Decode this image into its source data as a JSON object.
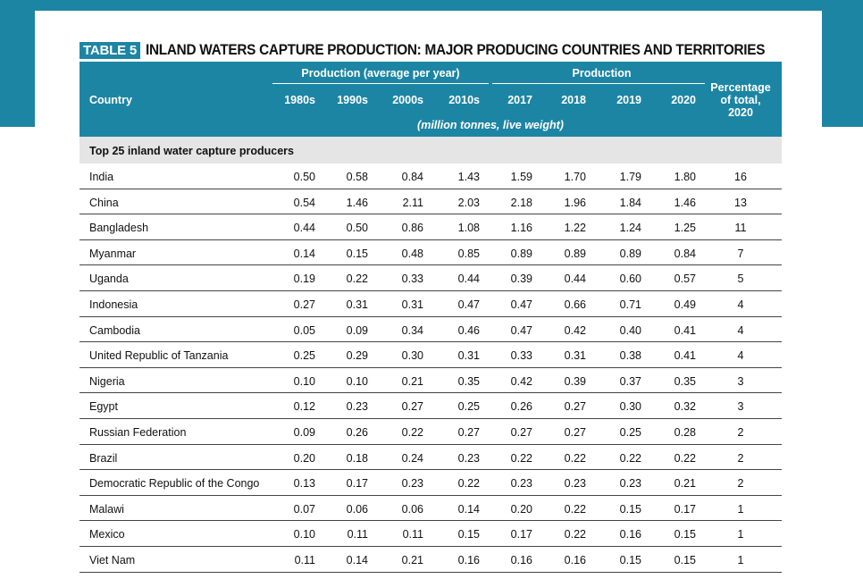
{
  "table": {
    "tag": "TABLE 5",
    "title": "INLAND WATERS CAPTURE PRODUCTION: MAJOR PRODUCING COUNTRIES AND TERRITORIES",
    "header": {
      "country": "Country",
      "group_average": "Production (average per year)",
      "group_production": "Production",
      "years": [
        "1980s",
        "1990s",
        "2000s",
        "2010s",
        "2017",
        "2018",
        "2019",
        "2020"
      ],
      "percentage": [
        "Percentage",
        "of total,",
        "2020"
      ],
      "units": "(million tonnes, live weight)"
    },
    "section": "Top 25 inland water capture producers",
    "rows": [
      {
        "country": "India",
        "values": [
          "0.50",
          "0.58",
          "0.84",
          "1.43",
          "1.59",
          "1.70",
          "1.79",
          "1.80"
        ],
        "pct": "16"
      },
      {
        "country": "China",
        "values": [
          "0.54",
          "1.46",
          "2.11",
          "2.03",
          "2.18",
          "1.96",
          "1.84",
          "1.46"
        ],
        "pct": "13"
      },
      {
        "country": "Bangladesh",
        "values": [
          "0.44",
          "0.50",
          "0.86",
          "1.08",
          "1.16",
          "1.22",
          "1.24",
          "1.25"
        ],
        "pct": "11"
      },
      {
        "country": "Myanmar",
        "values": [
          "0.14",
          "0.15",
          "0.48",
          "0.85",
          "0.89",
          "0.89",
          "0.89",
          "0.84"
        ],
        "pct": "7"
      },
      {
        "country": "Uganda",
        "values": [
          "0.19",
          "0.22",
          "0.33",
          "0.44",
          "0.39",
          "0.44",
          "0.60",
          "0.57"
        ],
        "pct": "5"
      },
      {
        "country": "Indonesia",
        "values": [
          "0.27",
          "0.31",
          "0.31",
          "0.47",
          "0.47",
          "0.66",
          "0.71",
          "0.49"
        ],
        "pct": "4"
      },
      {
        "country": "Cambodia",
        "values": [
          "0.05",
          "0.09",
          "0.34",
          "0.46",
          "0.47",
          "0.42",
          "0.40",
          "0.41"
        ],
        "pct": "4"
      },
      {
        "country": "United Republic of Tanzania",
        "values": [
          "0.25",
          "0.29",
          "0.30",
          "0.31",
          "0.33",
          "0.31",
          "0.38",
          "0.41"
        ],
        "pct": "4"
      },
      {
        "country": "Nigeria",
        "values": [
          "0.10",
          "0.10",
          "0.21",
          "0.35",
          "0.42",
          "0.39",
          "0.37",
          "0.35"
        ],
        "pct": "3"
      },
      {
        "country": "Egypt",
        "values": [
          "0.12",
          "0.23",
          "0.27",
          "0.25",
          "0.26",
          "0.27",
          "0.30",
          "0.32"
        ],
        "pct": "3"
      },
      {
        "country": "Russian Federation",
        "values": [
          "0.09",
          "0.26",
          "0.22",
          "0.27",
          "0.27",
          "0.27",
          "0.25",
          "0.28"
        ],
        "pct": "2"
      },
      {
        "country": "Brazil",
        "values": [
          "0.20",
          "0.18",
          "0.24",
          "0.23",
          "0.22",
          "0.22",
          "0.22",
          "0.22"
        ],
        "pct": "2"
      },
      {
        "country": "Democratic Republic of the Congo",
        "values": [
          "0.13",
          "0.17",
          "0.23",
          "0.22",
          "0.23",
          "0.23",
          "0.23",
          "0.21"
        ],
        "pct": "2"
      },
      {
        "country": "Malawi",
        "values": [
          "0.07",
          "0.06",
          "0.06",
          "0.14",
          "0.20",
          "0.22",
          "0.15",
          "0.17"
        ],
        "pct": "1"
      },
      {
        "country": "Mexico",
        "values": [
          "0.10",
          "0.11",
          "0.11",
          "0.15",
          "0.17",
          "0.22",
          "0.16",
          "0.15"
        ],
        "pct": "1"
      },
      {
        "country": "Viet Nam",
        "values": [
          "0.11",
          "0.14",
          "0.21",
          "0.16",
          "0.16",
          "0.16",
          "0.15",
          "0.15"
        ],
        "pct": "1"
      }
    ]
  },
  "colors": {
    "accent": "#1d85a4",
    "section_bg": "#e5e5e5"
  }
}
